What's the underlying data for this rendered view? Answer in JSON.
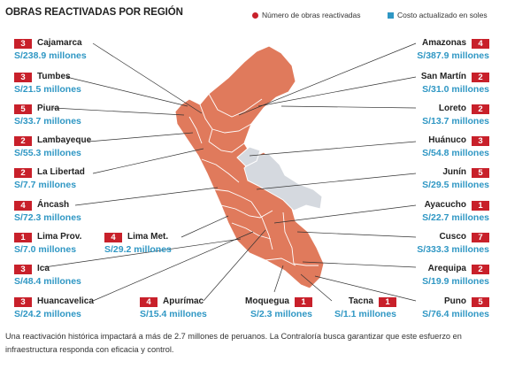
{
  "header": {
    "title": "OBRAS REACTIVADAS POR REGIÓN",
    "legend_count": "Número de obras reactivadas",
    "legend_cost": "Costo actualizado en soles"
  },
  "colors": {
    "badge": "#c8202a",
    "cost_text": "#2f97c4",
    "region_fill": "#e07a5c",
    "other_fill": "#d5d9df"
  },
  "regions": [
    {
      "name": "Cajamarca",
      "count": "3",
      "cost": "S/238.9 millones"
    },
    {
      "name": "Tumbes",
      "count": "3",
      "cost": "S/21.5 millones"
    },
    {
      "name": "Piura",
      "count": "5",
      "cost": "S/33.7 millones"
    },
    {
      "name": "Lambayeque",
      "count": "2",
      "cost": "S/55.3 millones"
    },
    {
      "name": "La Libertad",
      "count": "2",
      "cost": "S/7.7 millones"
    },
    {
      "name": "Áncash",
      "count": "4",
      "cost": "S/72.3 millones"
    },
    {
      "name": "Lima Prov.",
      "count": "1",
      "cost": "S/7.0 millones"
    },
    {
      "name": "Lima Met.",
      "count": "4",
      "cost": "S/29.2 millones"
    },
    {
      "name": "Ica",
      "count": "3",
      "cost": "S/48.4 millones"
    },
    {
      "name": "Huancavelica",
      "count": "3",
      "cost": "S/24.2 millones"
    },
    {
      "name": "Apurímac",
      "count": "4",
      "cost": "S/15.4 millones"
    },
    {
      "name": "Moquegua",
      "count": "1",
      "cost": "S/2.3 millones"
    },
    {
      "name": "Tacna",
      "count": "1",
      "cost": "S/1.1 millones"
    },
    {
      "name": "Amazonas",
      "count": "4",
      "cost": "S/387.9 millones"
    },
    {
      "name": "San Martín",
      "count": "2",
      "cost": "S/31.0 millones"
    },
    {
      "name": "Loreto",
      "count": "2",
      "cost": "S/13.7 millones"
    },
    {
      "name": "Huánuco",
      "count": "3",
      "cost": "S/54.8 millones"
    },
    {
      "name": "Junín",
      "count": "5",
      "cost": "S/29.5 millones"
    },
    {
      "name": "Ayacucho",
      "count": "1",
      "cost": "S/22.7 millones"
    },
    {
      "name": "Cusco",
      "count": "7",
      "cost": "S/333.3 millones"
    },
    {
      "name": "Arequipa",
      "count": "2",
      "cost": "S/19.9 millones"
    },
    {
      "name": "Puno",
      "count": "5",
      "cost": "S/76.4 millones"
    }
  ],
  "caption": "Una reactivación histórica impactará a más de 2.7 millones de peruanos. La Contraloría busca garantizar que este esfuerzo en infraestructura responda con eficacia y control."
}
